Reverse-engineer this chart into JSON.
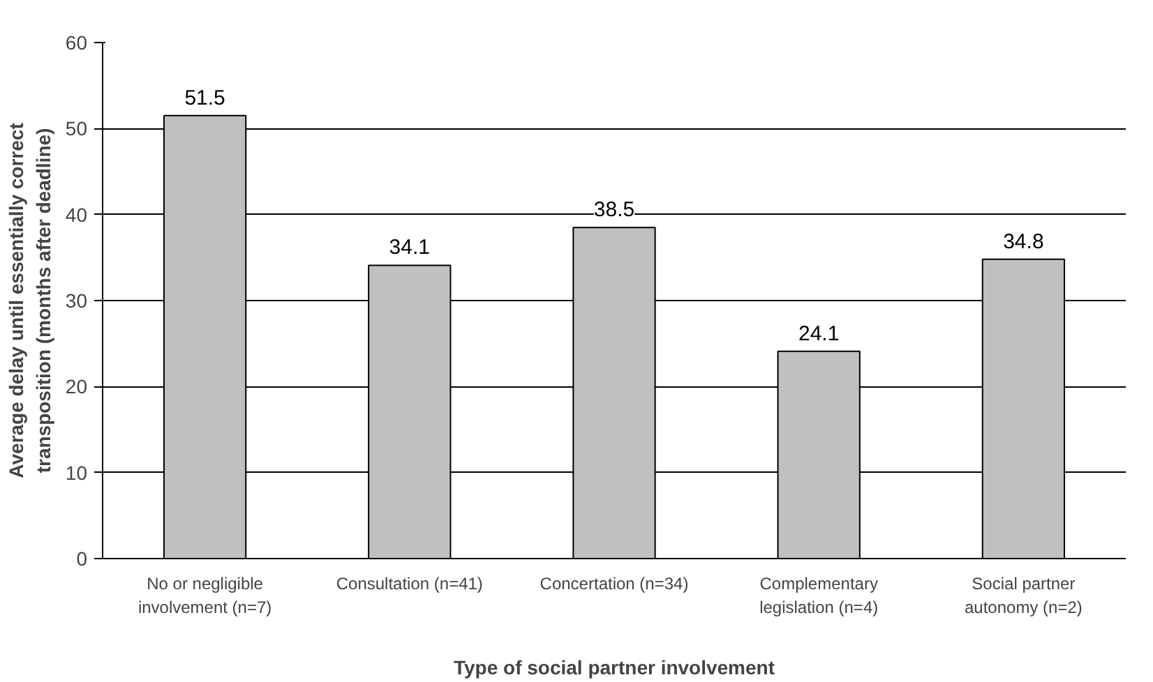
{
  "chart_data": {
    "type": "bar",
    "xlabel": "Type of social partner involvement",
    "ylabel": "Average delay until essentially correct transposition (months after deadline)",
    "categories": [
      "No or negligible involvement (n=7)",
      "Consultation (n=41)",
      "Concertation (n=34)",
      "Complementary legislation (n=4)",
      "Social partner autonomy (n=2)"
    ],
    "values": [
      51.5,
      34.1,
      38.5,
      24.1,
      34.8
    ],
    "color": "#c0c0c0",
    "ylim": [
      0,
      60
    ],
    "yticks": [
      0,
      10,
      20,
      30,
      40,
      50,
      60
    ],
    "grid": "y",
    "data_labels": true
  }
}
